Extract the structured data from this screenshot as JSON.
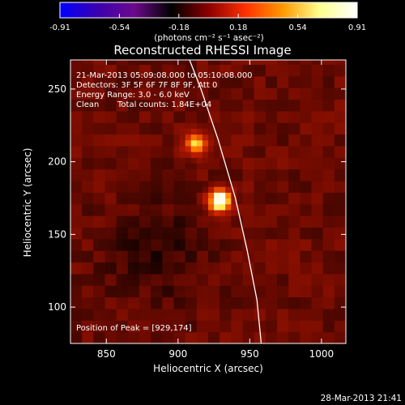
{
  "chart_data": {
    "type": "heatmap",
    "title": "Reconstructed RHESSI Image",
    "xlabel": "Heliocentric X (arcsec)",
    "ylabel": "Heliocentric Y (arcsec)",
    "xlim": [
      825,
      1017
    ],
    "ylim": [
      75,
      270
    ],
    "x_ticks": [
      850,
      900,
      950,
      1000
    ],
    "y_ticks": [
      100,
      150,
      200,
      250
    ],
    "colorbar": {
      "range": [
        -0.91,
        0.91
      ],
      "ticks": [
        "-0.91",
        "-0.54",
        "-0.18",
        "0.18",
        "0.54",
        "0.91"
      ],
      "unit_label": "(photons cm⁻² s⁻¹ asec⁻²)",
      "colors": [
        "#0000ff",
        "#3a00b0",
        "#6c0a8c",
        "#000000",
        "#8b0000",
        "#ff3000",
        "#ff9a00",
        "#ffff90",
        "#ffffff"
      ]
    },
    "sources": [
      {
        "x": 929,
        "y": 174,
        "peak": 0.91
      },
      {
        "x": 913,
        "y": 212,
        "peak": 0.55
      }
    ],
    "background_level": 0.22,
    "limb_curve": [
      [
        958,
        75
      ],
      [
        955,
        105
      ],
      [
        948,
        140
      ],
      [
        940,
        175
      ],
      [
        928,
        215
      ],
      [
        916,
        250
      ],
      [
        908,
        270
      ]
    ],
    "limb_color": "#ffffff"
  },
  "annotations": {
    "time_range": "21-Mar-2013 05:09:08.000 to 05:10:08.000",
    "detectors": "Detectors: 3F 5F 6F 7F 8F 9F, Att 0",
    "energy": "Energy Range: 3.0 - 6.0 keV",
    "method": "Clean",
    "counts": "Total counts: 1.84E+04",
    "peak": "Position of Peak = [929,174]"
  },
  "footer": {
    "timestamp": "28-Mar-2013 21:41"
  }
}
